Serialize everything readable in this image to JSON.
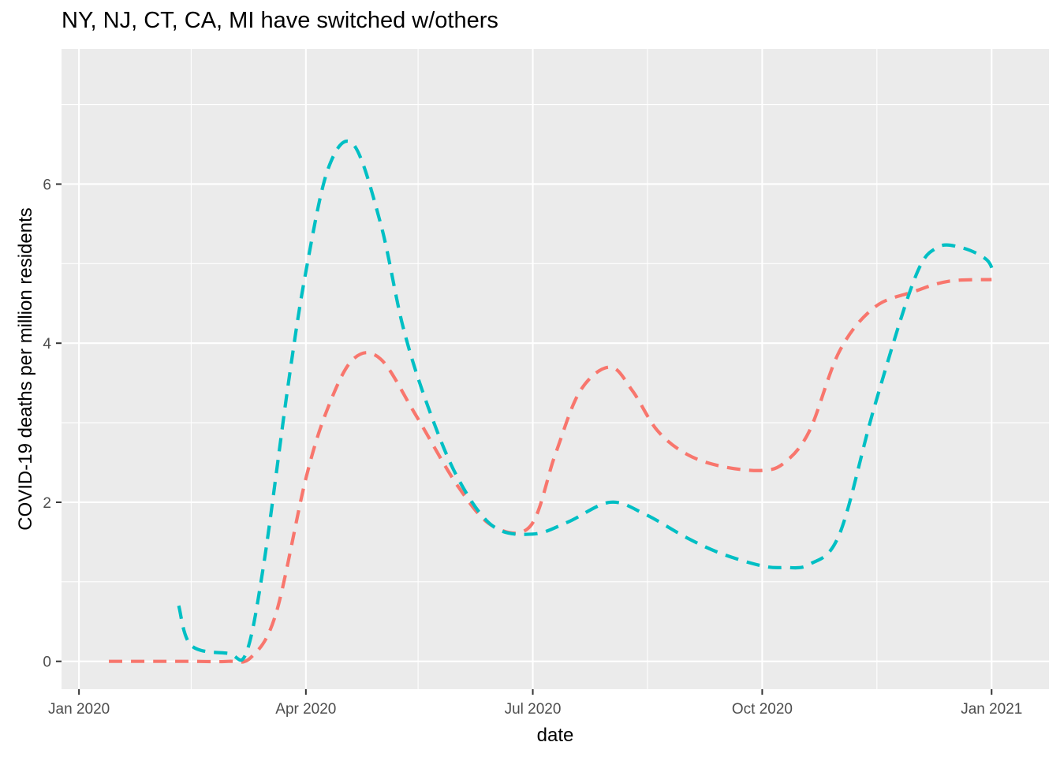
{
  "chart_data": {
    "type": "line",
    "title": "NY, NJ, CT, CA, MI have switched w/others",
    "xlabel": "date",
    "ylabel": "COVID-19 deaths per million residents",
    "x_type": "date",
    "xlim": [
      "2019-12-25",
      "2021-01-24"
    ],
    "ylim": [
      -0.35,
      7.7
    ],
    "x_ticks": [
      {
        "date": "2020-01-01",
        "label": "Jan 2020"
      },
      {
        "date": "2020-04-01",
        "label": "Apr 2020"
      },
      {
        "date": "2020-07-01",
        "label": "Jul 2020"
      },
      {
        "date": "2020-10-01",
        "label": "Oct 2020"
      },
      {
        "date": "2021-01-01",
        "label": "Jan 2021"
      }
    ],
    "x_minor_ticks": [
      "2020-02-15",
      "2020-05-16",
      "2020-08-16",
      "2020-11-16"
    ],
    "y_ticks": [
      0,
      2,
      4,
      6
    ],
    "y_minor_ticks": [
      1,
      3,
      5,
      7
    ],
    "grid": true,
    "legend": "none",
    "series": [
      {
        "color": "#f8766d",
        "dash": "dashed",
        "x": [
          "2020-01-13",
          "2020-02-01",
          "2020-02-15",
          "2020-03-01",
          "2020-03-10",
          "2020-03-20",
          "2020-04-01",
          "2020-04-10",
          "2020-04-20",
          "2020-05-01",
          "2020-05-15",
          "2020-06-01",
          "2020-06-15",
          "2020-06-30",
          "2020-07-10",
          "2020-07-20",
          "2020-08-01",
          "2020-08-10",
          "2020-08-20",
          "2020-09-01",
          "2020-09-15",
          "2020-10-01",
          "2020-10-10",
          "2020-10-20",
          "2020-11-01",
          "2020-11-15",
          "2020-12-01",
          "2020-12-15",
          "2021-01-01"
        ],
        "y": [
          0.0,
          0.0,
          0.0,
          0.0,
          0.05,
          0.6,
          2.3,
          3.2,
          3.8,
          3.8,
          3.1,
          2.2,
          1.7,
          1.7,
          2.6,
          3.4,
          3.7,
          3.4,
          2.9,
          2.6,
          2.45,
          2.4,
          2.5,
          2.9,
          3.9,
          4.45,
          4.65,
          4.78,
          4.8
        ]
      },
      {
        "color": "#00bfc4",
        "dash": "dashed",
        "x": [
          "2020-02-10",
          "2020-02-15",
          "2020-03-01",
          "2020-03-08",
          "2020-03-15",
          "2020-03-25",
          "2020-04-01",
          "2020-04-10",
          "2020-04-20",
          "2020-05-01",
          "2020-05-10",
          "2020-05-20",
          "2020-06-01",
          "2020-06-15",
          "2020-07-01",
          "2020-07-15",
          "2020-08-01",
          "2020-08-15",
          "2020-09-01",
          "2020-09-15",
          "2020-10-01",
          "2020-10-10",
          "2020-10-20",
          "2020-11-01",
          "2020-11-15",
          "2020-12-01",
          "2020-12-10",
          "2020-12-20",
          "2020-12-30",
          "2021-01-02"
        ],
        "y": [
          0.7,
          0.2,
          0.1,
          0.1,
          1.2,
          3.5,
          4.9,
          6.2,
          6.5,
          5.5,
          4.2,
          3.2,
          2.3,
          1.7,
          1.6,
          1.75,
          2.0,
          1.85,
          1.55,
          1.35,
          1.2,
          1.18,
          1.22,
          1.6,
          3.2,
          4.8,
          5.2,
          5.2,
          5.05,
          4.85
        ]
      }
    ]
  }
}
